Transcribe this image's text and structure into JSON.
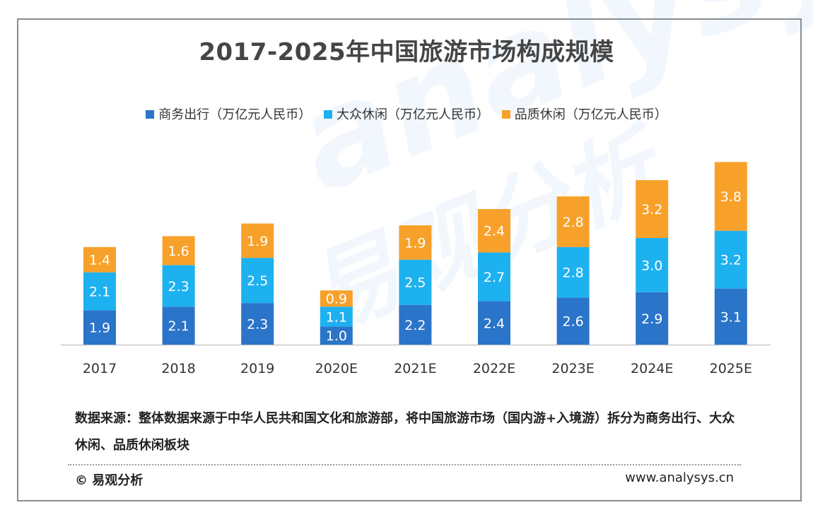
{
  "chart_data": {
    "type": "bar",
    "stacked": true,
    "title": "2017-2025年中国旅游市场构成规模",
    "categories": [
      "2017",
      "2018",
      "2019",
      "2020E",
      "2021E",
      "2022E",
      "2023E",
      "2024E",
      "2025E"
    ],
    "series": [
      {
        "name": "商务出行（万亿元人民币）",
        "color": "#2a74c9",
        "values": [
          1.9,
          2.1,
          2.3,
          1.0,
          2.2,
          2.4,
          2.6,
          2.9,
          3.1
        ]
      },
      {
        "name": "大众休闲（万亿元人民币）",
        "color": "#1eb1f0",
        "values": [
          2.1,
          2.3,
          2.5,
          1.1,
          2.5,
          2.7,
          2.8,
          3.0,
          3.2
        ]
      },
      {
        "name": "品质休闲（万亿元人民币）",
        "color": "#f7a12a",
        "values": [
          1.4,
          1.6,
          1.9,
          0.9,
          1.9,
          2.4,
          2.8,
          3.2,
          3.8
        ]
      }
    ],
    "legend_position": "top",
    "grid": false,
    "xlabel": "",
    "ylabel": ""
  },
  "footer": {
    "source_text": "数据来源：整体数据来源于中华人民共和国文化和旅游部，将中国旅游市场（国内游+入境游）拆分为商务出行、大众休闲、品质休闲板块",
    "copyright": "© 易观分析",
    "website": "www.analysys.cn"
  },
  "watermark": {
    "text": "analysys",
    "cn_text": "易观分析"
  }
}
